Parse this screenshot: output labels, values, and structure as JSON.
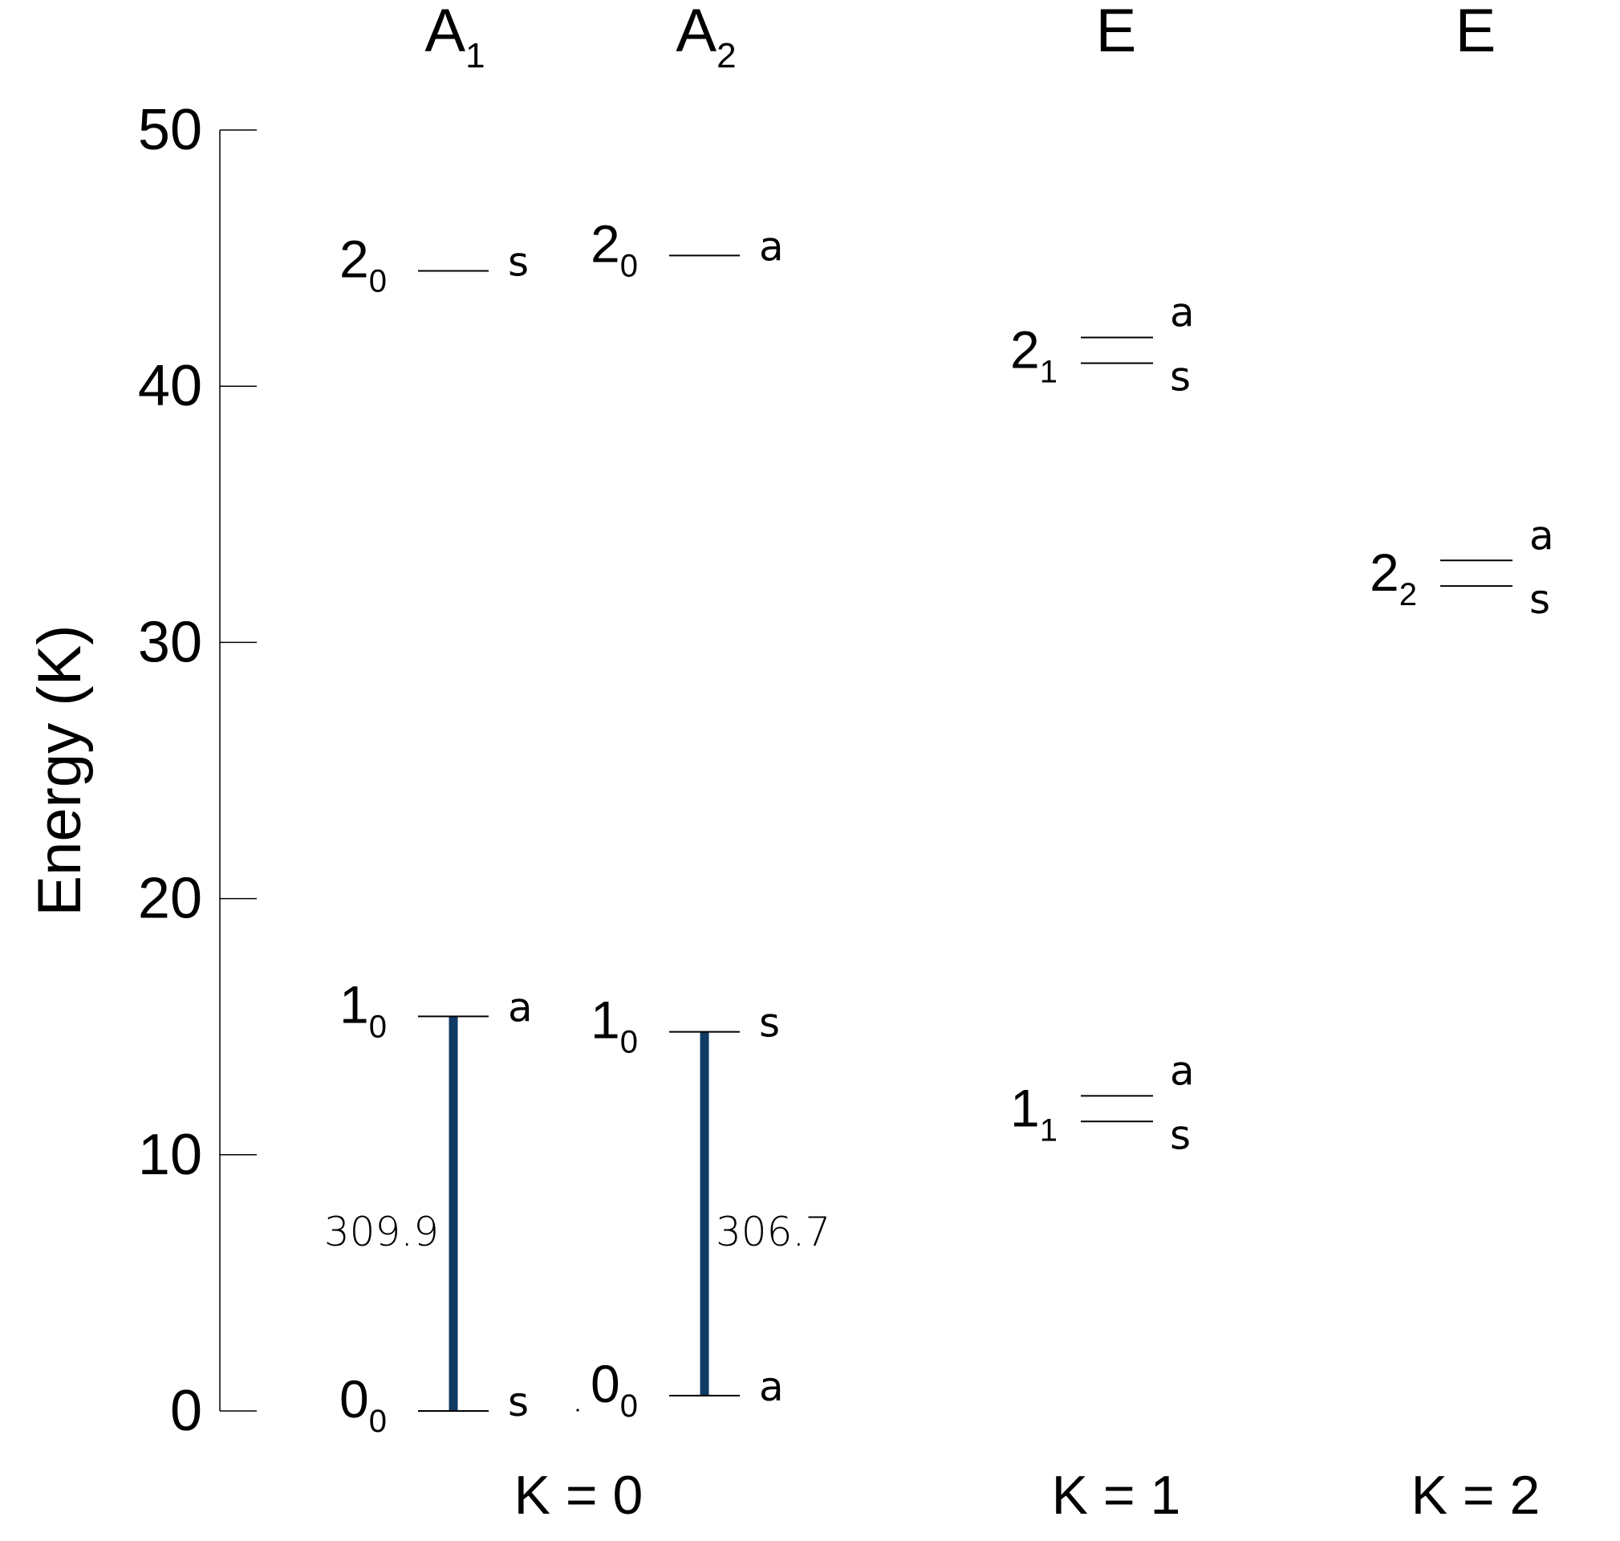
{
  "axis": {
    "label": "Energy (K)",
    "ticks": [
      0,
      10,
      20,
      30,
      40,
      50
    ],
    "range": [
      0,
      50
    ]
  },
  "columns": [
    {
      "id": "A1",
      "symbol": "A",
      "subscript": "1"
    },
    {
      "id": "A2",
      "symbol": "A",
      "subscript": "2"
    },
    {
      "id": "E1",
      "symbol": "E",
      "subscript": ""
    },
    {
      "id": "E2",
      "symbol": "E",
      "subscript": ""
    }
  ],
  "k_labels": [
    {
      "id": "k0",
      "text": "K = 0"
    },
    {
      "id": "k1",
      "text": "K = 1"
    },
    {
      "id": "k2",
      "text": "K = 2"
    }
  ],
  "levels": [
    {
      "id": "a1-00",
      "column": "A1",
      "energy": 0.0,
      "j": "0",
      "k": "0",
      "sym": "s"
    },
    {
      "id": "a1-10",
      "column": "A1",
      "energy": 15.4,
      "j": "1",
      "k": "0",
      "sym": "a"
    },
    {
      "id": "a1-20",
      "column": "A1",
      "energy": 44.5,
      "j": "2",
      "k": "0",
      "sym": "s"
    },
    {
      "id": "a2-00",
      "column": "A2",
      "energy": 0.6,
      "j": "0",
      "k": "0",
      "sym": "a"
    },
    {
      "id": "a2-10",
      "column": "A2",
      "energy": 14.8,
      "j": "1",
      "k": "0",
      "sym": "s"
    },
    {
      "id": "a2-20",
      "column": "A2",
      "energy": 45.1,
      "j": "2",
      "k": "0",
      "sym": "a"
    }
  ],
  "doublets": [
    {
      "id": "e1-11",
      "column": "E1",
      "j": "1",
      "k": "1",
      "upper": {
        "energy": 12.3,
        "sym": "a"
      },
      "lower": {
        "energy": 11.3,
        "sym": "s"
      }
    },
    {
      "id": "e1-21",
      "column": "E1",
      "j": "2",
      "k": "1",
      "upper": {
        "energy": 41.9,
        "sym": "a"
      },
      "lower": {
        "energy": 40.9,
        "sym": "s"
      }
    },
    {
      "id": "e2-22",
      "column": "E2",
      "j": "2",
      "k": "2",
      "upper": {
        "energy": 33.2,
        "sym": "a"
      },
      "lower": {
        "energy": 32.2,
        "sym": "s"
      }
    }
  ],
  "transitions": [
    {
      "id": "t-a1",
      "column": "A1",
      "from": 0.0,
      "to": 15.4,
      "label": "309.9",
      "color": "#0f3a63"
    },
    {
      "id": "t-a2",
      "column": "A2",
      "from": 0.6,
      "to": 14.8,
      "label": "306.7",
      "color": "#0f3a63"
    }
  ]
}
